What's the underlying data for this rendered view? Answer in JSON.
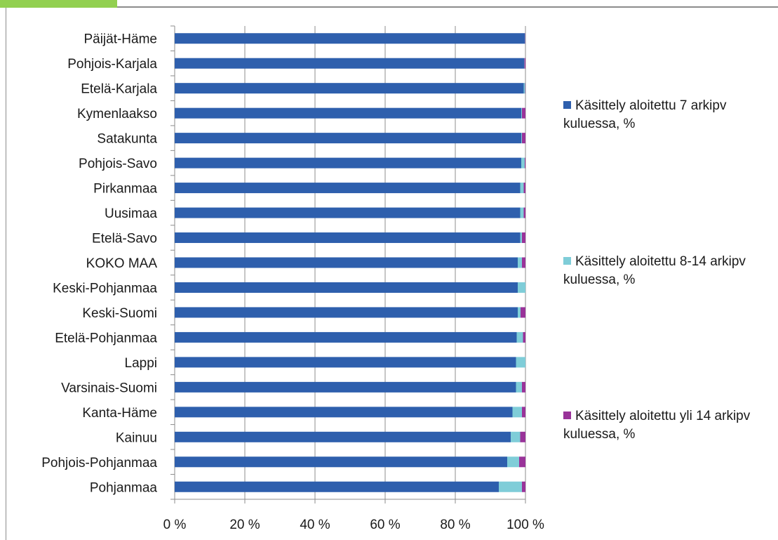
{
  "chart_data": {
    "type": "bar",
    "orientation": "horizontal",
    "stacked": true,
    "percent_stacked": true,
    "categories": [
      "Päijät-Häme",
      "Pohjois-Karjala",
      "Etelä-Karjala",
      "Kymenlaakso",
      "Satakunta",
      "Pohjois-Savo",
      "Pirkanmaa",
      "Uusimaa",
      "Etelä-Savo",
      "KOKO MAA",
      "Keski-Pohjanmaa",
      "Keski-Suomi",
      "Etelä-Pohjanmaa",
      "Lappi",
      "Varsinais-Suomi",
      "Kanta-Häme",
      "Kainuu",
      "Pohjois-Pohjanmaa",
      "Pohjanmaa"
    ],
    "series": [
      {
        "name": "Käsittely aloitettu 7 arkipv kuluessa, %",
        "color": "#2e5fad",
        "values": [
          99.8,
          99.6,
          99.5,
          98.8,
          98.8,
          98.8,
          98.5,
          98.5,
          98.5,
          97.8,
          97.8,
          97.8,
          97.5,
          97.3,
          97.3,
          96.3,
          95.8,
          94.8,
          92.4
        ]
      },
      {
        "name": "Käsittely aloitettu 8-14 arkipv kuluessa, %",
        "color": "#7fcdd8",
        "values": [
          0.1,
          0.1,
          0.4,
          0.2,
          0.2,
          1.0,
          1.0,
          1.0,
          0.5,
          1.2,
          2.2,
          0.8,
          1.8,
          2.7,
          1.7,
          2.7,
          2.7,
          3.4,
          6.6
        ]
      },
      {
        "name": "Käsittely aloitettu yli 14 arkipv kuluessa, %",
        "color": "#993399",
        "values": [
          0.1,
          0.3,
          0.1,
          1.0,
          1.0,
          0.2,
          0.5,
          0.5,
          1.0,
          1.0,
          0.0,
          1.4,
          0.7,
          0.0,
          1.0,
          1.0,
          1.5,
          1.8,
          1.0
        ]
      }
    ],
    "x_ticks": [
      "0 %",
      "20 %",
      "40 %",
      "60 %",
      "80 %",
      "100 %"
    ],
    "xlim": [
      0,
      100
    ],
    "grid": "vertical",
    "legend_position": "right"
  }
}
